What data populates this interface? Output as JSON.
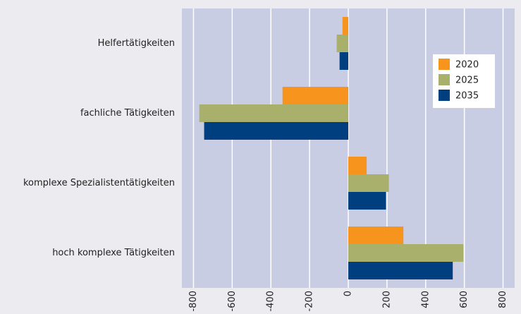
{
  "chart_data": {
    "type": "barh",
    "categories": [
      "Helfertätigkeiten",
      "fachliche Tätigkeiten",
      "komplexe Spezialistentätigkeiten",
      "hoch komplexe Tätigkeiten"
    ],
    "series": [
      {
        "name": "2020",
        "color": "#f7941d",
        "values": [
          -30,
          -340,
          95,
          285
        ]
      },
      {
        "name": "2025",
        "color": "#a9b06b",
        "values": [
          -60,
          -770,
          210,
          595
        ]
      },
      {
        "name": "2035",
        "color": "#003f7f",
        "values": [
          -45,
          -745,
          195,
          540
        ]
      }
    ],
    "xlim": [
      -860,
      860
    ],
    "xticks": [
      -800,
      -600,
      -400,
      -200,
      0,
      200,
      400,
      600,
      800
    ],
    "grid": true,
    "legend": "upper right"
  }
}
